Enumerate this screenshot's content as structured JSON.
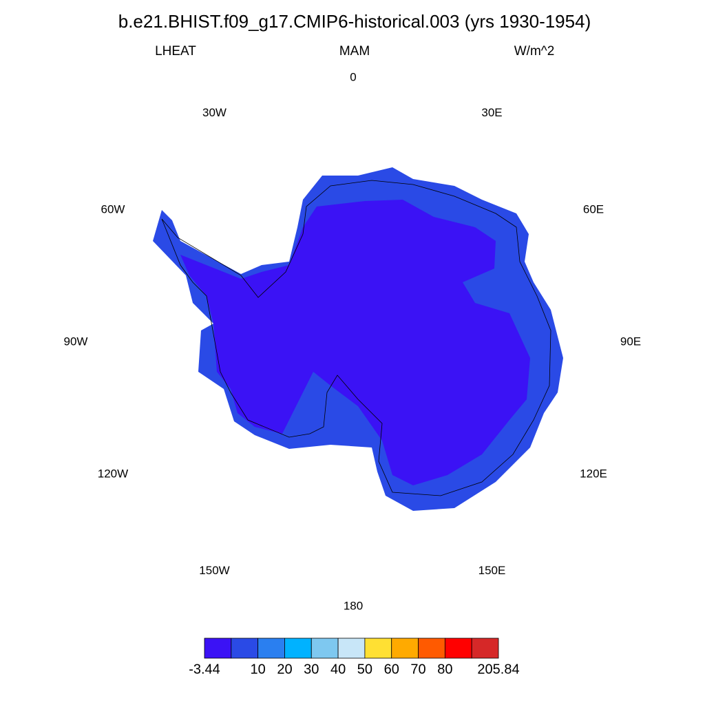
{
  "header": {
    "title": "b.e21.BHIST.f09_g17.CMIP6-historical.003 (yrs 1930-1954)",
    "variable": "LHEAT",
    "season": "MAM",
    "units": "W/m^2"
  },
  "map": {
    "longitude_labels": [
      "0",
      "30E",
      "60E",
      "90E",
      "120E",
      "150E",
      "180",
      "150W",
      "120W",
      "90W",
      "60W",
      "30W"
    ]
  },
  "colorbar": {
    "colors": [
      "#3b12f5",
      "#2a4ae6",
      "#2a7ff0",
      "#00b2ff",
      "#7ec8f0",
      "#c8e6f8",
      "#ffe033",
      "#ffaa00",
      "#ff5a00",
      "#ff0000",
      "#d62828"
    ],
    "boundaries": [
      -3.44,
      null,
      10,
      20,
      30,
      40,
      50,
      60,
      70,
      80,
      null,
      205.84
    ]
  }
}
